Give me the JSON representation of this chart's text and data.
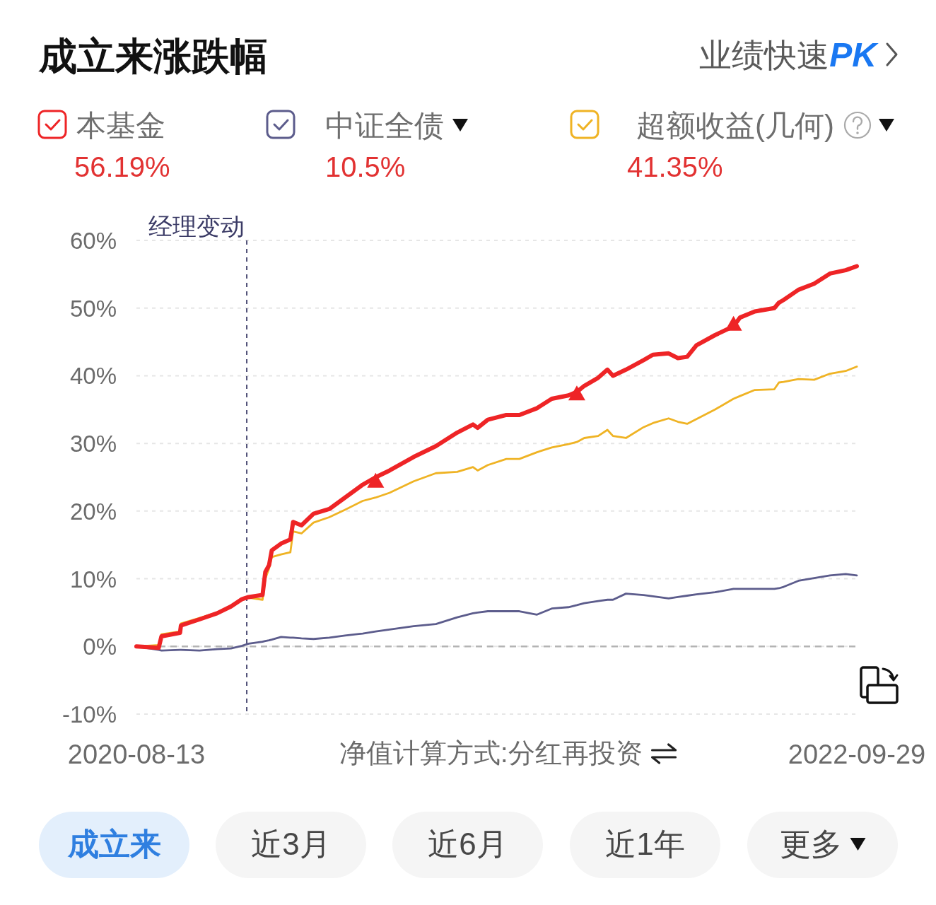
{
  "chart_data": {
    "type": "line",
    "title": "成立来涨跌幅",
    "x": [
      "2020-08-13",
      "2020-09-06",
      "2020-09-09",
      "2020-09-29",
      "2020-09-30",
      "2020-10-20",
      "2020-11-08",
      "2020-11-23",
      "2020-12-05",
      "2020-12-12",
      "2020-12-27",
      "2020-12-30",
      "2021-01-03",
      "2021-01-06",
      "2021-01-16",
      "2021-01-26",
      "2021-01-29",
      "2021-02-07",
      "2021-02-20",
      "2021-03-09",
      "2021-03-26",
      "2021-04-14",
      "2021-04-28",
      "2021-05-13",
      "2021-06-08",
      "2021-07-02",
      "2021-07-25",
      "2021-08-11",
      "2021-08-16",
      "2021-08-27",
      "2021-09-16",
      "2021-09-30",
      "2021-10-19",
      "2021-11-04",
      "2021-11-22",
      "2021-12-01",
      "2021-12-09",
      "2021-12-24",
      "2022-01-03",
      "2022-01-09",
      "2022-01-23",
      "2022-02-11",
      "2022-02-21",
      "2022-03-10",
      "2022-03-20",
      "2022-03-30",
      "2022-04-09",
      "2022-04-29",
      "2022-05-19",
      "2022-05-26",
      "2022-06-11",
      "2022-07-02",
      "2022-07-07",
      "2022-07-12",
      "2022-07-28",
      "2022-08-14",
      "2022-08-31",
      "2022-09-17",
      "2022-09-29"
    ],
    "xlim": [
      "2020-08-13",
      "2022-09-29"
    ],
    "xticks": [
      "2020-08-13",
      "2022-09-29"
    ],
    "ylim": [
      -10,
      60
    ],
    "yticks": [
      {
        "value": -10,
        "label": "-10%"
      },
      {
        "value": 0,
        "label": "0%"
      },
      {
        "value": 10,
        "label": "10%"
      },
      {
        "value": 20,
        "label": "20%"
      },
      {
        "value": 30,
        "label": "30%"
      },
      {
        "value": 40,
        "label": "40%"
      },
      {
        "value": 50,
        "label": "50%"
      },
      {
        "value": 60,
        "label": "60%"
      }
    ],
    "grid": "y",
    "legend": "top",
    "series": [
      {
        "name": "本基金",
        "color": "#ee2426",
        "values": [
          0,
          -0.2,
          1.5,
          2.0,
          3.1,
          4.0,
          4.9,
          5.9,
          7.0,
          7.3,
          7.6,
          11.0,
          12.0,
          14.2,
          15.2,
          15.8,
          18.4,
          17.9,
          19.6,
          20.3,
          22.0,
          23.9,
          25.0,
          26.0,
          28.0,
          29.6,
          31.6,
          32.8,
          32.3,
          33.5,
          34.2,
          34.2,
          35.2,
          36.6,
          37.1,
          37.6,
          38.5,
          39.7,
          40.9,
          40.0,
          40.9,
          42.3,
          43.1,
          43.3,
          42.6,
          42.8,
          44.5,
          46.0,
          47.3,
          48.6,
          49.5,
          50.0,
          50.8,
          51.2,
          52.7,
          53.6,
          55.1,
          55.6,
          56.19
        ]
      },
      {
        "name": "中证全债",
        "color": "#5c5c8c",
        "values": [
          0,
          -0.5,
          -0.6,
          -0.5,
          -0.5,
          -0.6,
          -0.4,
          -0.3,
          0.1,
          0.4,
          0.7,
          0.8,
          0.9,
          1.0,
          1.4,
          1.3,
          1.3,
          1.2,
          1.1,
          1.3,
          1.6,
          1.9,
          2.2,
          2.5,
          3.0,
          3.3,
          4.3,
          4.9,
          5.0,
          5.2,
          5.2,
          5.2,
          4.7,
          5.6,
          5.8,
          6.1,
          6.4,
          6.7,
          6.9,
          6.9,
          7.8,
          7.6,
          7.4,
          7.1,
          7.3,
          7.5,
          7.7,
          8.0,
          8.5,
          8.5,
          8.5,
          8.5,
          8.6,
          8.8,
          9.7,
          10.1,
          10.5,
          10.7,
          10.5
        ]
      },
      {
        "name": "超额收益(几何)",
        "color": "#efb324",
        "values": [
          0,
          0.2,
          1.8,
          2.2,
          3.4,
          4.2,
          5.0,
          6.0,
          6.9,
          7.2,
          6.9,
          10.0,
          11.5,
          13.2,
          13.6,
          13.9,
          17.0,
          16.7,
          18.3,
          19.1,
          20.2,
          21.5,
          22.0,
          22.7,
          24.4,
          25.6,
          25.8,
          26.5,
          26.0,
          26.8,
          27.7,
          27.7,
          28.7,
          29.4,
          29.9,
          30.2,
          30.8,
          31.1,
          32.0,
          31.1,
          30.8,
          32.4,
          33.0,
          33.7,
          33.2,
          32.9,
          33.6,
          35.0,
          36.6,
          37.0,
          37.9,
          38.0,
          39.0,
          39.1,
          39.5,
          39.4,
          40.3,
          40.7,
          41.35
        ]
      },
      {
        "type": "scatter",
        "color": "#ee2426",
        "marker": "triangle",
        "x": [
          "2021-04-28",
          "2021-12-01",
          "2022-05-19"
        ],
        "values": [
          24.4,
          37.3,
          47.6
        ]
      }
    ],
    "ref_lines": [
      {
        "axis": "x",
        "value": "2020-12-10",
        "label": "经理变动",
        "color": "#3b3b66",
        "line_style": "dashed"
      },
      {
        "axis": "y",
        "value": 0,
        "color": "#b4b4b4",
        "line_style": "dashed"
      }
    ],
    "annotations": [
      "业绩快速**PK**",
      "56.19%",
      "10.5%",
      "41.35%",
      "净值计算方式:分红再投资",
      "成立来",
      "近3月",
      "近6月",
      "近1年",
      "更多"
    ]
  }
}
